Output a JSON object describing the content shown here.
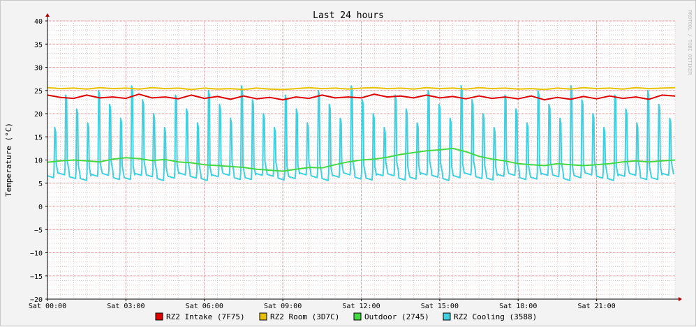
{
  "chart_data": {
    "type": "line",
    "title": "Last 24 hours",
    "ylabel": "Temperature (°C)",
    "watermark": "RRDTOOL / TOBI OETIKER",
    "ylim": [
      -20,
      40
    ],
    "yticks": [
      40,
      35,
      30,
      25,
      20,
      15,
      10,
      5,
      0,
      -5,
      -10,
      -15,
      -20
    ],
    "xlim": [
      0,
      24
    ],
    "xticks": [
      {
        "value": 0,
        "label": "Sat 00:00"
      },
      {
        "value": 3,
        "label": "Sat 03:00"
      },
      {
        "value": 6,
        "label": "Sat 06:00"
      },
      {
        "value": 9,
        "label": "Sat 09:00"
      },
      {
        "value": 12,
        "label": "Sat 12:00"
      },
      {
        "value": 15,
        "label": "Sat 15:00"
      },
      {
        "value": 18,
        "label": "Sat 18:00"
      },
      {
        "value": 21,
        "label": "Sat 21:00"
      }
    ],
    "grid": true,
    "legend_position": "bottom",
    "series": [
      {
        "name": "RZ2 Intake (7F75)",
        "color": "#e00000",
        "x": [
          0,
          0.5,
          1,
          1.5,
          2,
          2.5,
          3,
          3.5,
          4,
          4.5,
          5,
          5.5,
          6,
          6.5,
          7,
          7.5,
          8,
          8.5,
          9,
          9.5,
          10,
          10.5,
          11,
          11.5,
          12,
          12.5,
          13,
          13.5,
          14,
          14.5,
          15,
          15.5,
          16,
          16.5,
          17,
          17.5,
          18,
          18.5,
          19,
          19.5,
          20,
          20.5,
          21,
          21.5,
          22,
          22.5,
          23,
          23.5,
          24
        ],
        "y": [
          24,
          23.5,
          23.3,
          24,
          23.4,
          23.6,
          23.3,
          24.2,
          23.4,
          23.6,
          23.2,
          24,
          23.3,
          23.7,
          23.1,
          23.8,
          23.2,
          23.5,
          23,
          23.6,
          23.3,
          24,
          23.4,
          23.6,
          23.4,
          24.2,
          23.6,
          23.8,
          23.4,
          24,
          23.4,
          23.7,
          23.2,
          23.8,
          23.3,
          23.6,
          23.2,
          23.8,
          23,
          23.5,
          23.1,
          23.7,
          23.2,
          23.8,
          23.3,
          23.6,
          23.1,
          24,
          23.8
        ]
      },
      {
        "name": "RZ2 Room (3D7C)",
        "color": "#e8c000",
        "x": [
          0,
          0.5,
          1,
          1.5,
          2,
          2.5,
          3,
          3.5,
          4,
          4.5,
          5,
          5.5,
          6,
          6.5,
          7,
          7.5,
          8,
          8.5,
          9,
          9.5,
          10,
          10.5,
          11,
          11.5,
          12,
          12.5,
          13,
          13.5,
          14,
          14.5,
          15,
          15.5,
          16,
          16.5,
          17,
          17.5,
          18,
          18.5,
          19,
          19.5,
          20,
          20.5,
          21,
          21.5,
          22,
          22.5,
          23,
          23.5,
          24
        ],
        "y": [
          25.6,
          25.4,
          25.5,
          25.3,
          25.6,
          25.4,
          25.5,
          25.3,
          25.6,
          25.4,
          25.5,
          25.2,
          25.5,
          25.3,
          25.4,
          25.2,
          25.5,
          25.3,
          25.2,
          25.4,
          25.6,
          25.4,
          25.5,
          25.3,
          25.5,
          25.6,
          25.4,
          25.5,
          25.3,
          25.6,
          25.4,
          25.5,
          25.3,
          25.6,
          25.4,
          25.5,
          25.3,
          25.4,
          25.2,
          25.5,
          25.3,
          25.6,
          25.4,
          25.5,
          25.3,
          25.6,
          25.4,
          25.5,
          25.6
        ]
      },
      {
        "name": "Outdoor (2745)",
        "color": "#44d844",
        "x": [
          0,
          0.5,
          1,
          1.5,
          2,
          2.5,
          3,
          3.5,
          4,
          4.5,
          5,
          5.5,
          6,
          6.5,
          7,
          7.5,
          8,
          8.5,
          9,
          9.5,
          10,
          10.5,
          11,
          11.5,
          12,
          12.5,
          13,
          13.5,
          14,
          14.5,
          15,
          15.5,
          16,
          16.5,
          17,
          17.5,
          18,
          18.5,
          19,
          19.5,
          20,
          20.5,
          21,
          21.5,
          22,
          22.5,
          23,
          23.5,
          24
        ],
        "y": [
          9.5,
          9.8,
          10,
          9.8,
          9.6,
          10.2,
          10.5,
          10.3,
          9.9,
          10.1,
          9.6,
          9.4,
          9.0,
          8.8,
          8.6,
          8.4,
          8.0,
          7.8,
          7.6,
          8.0,
          8.4,
          8.3,
          9.0,
          9.6,
          10.0,
          10.2,
          10.6,
          11.2,
          11.6,
          12.0,
          12.2,
          12.5,
          11.8,
          10.8,
          10.2,
          9.8,
          9.2,
          9.0,
          8.8,
          9.2,
          9.0,
          8.8,
          9.0,
          9.2,
          9.6,
          9.8,
          9.6,
          9.8,
          10.0
        ]
      },
      {
        "name": "RZ2 Cooling (3588)",
        "color": "#40d0e0",
        "x": [],
        "y": []
      }
    ]
  }
}
